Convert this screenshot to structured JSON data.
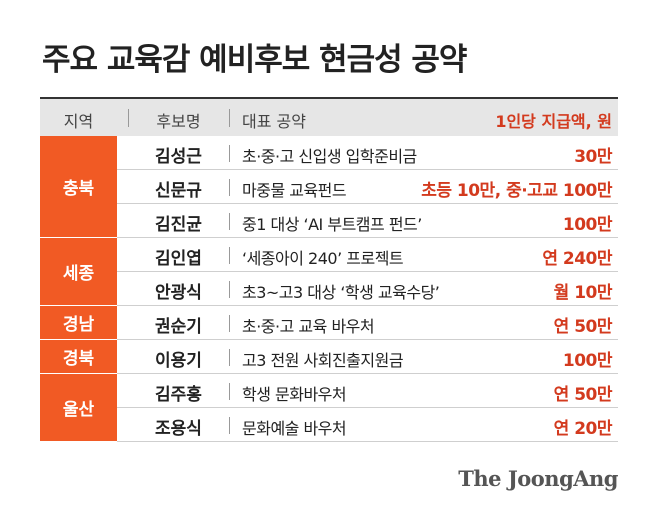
{
  "title": "주요 교육감 예비후보 현금성 공약",
  "header": {
    "region": "지역",
    "candidate": "후보명",
    "pledge": "대표 공약",
    "amount": "1인당 지급액, 원"
  },
  "regions": [
    {
      "name": "충북",
      "rows": 3
    },
    {
      "name": "세종",
      "rows": 2
    },
    {
      "name": "경남",
      "rows": 1
    },
    {
      "name": "경북",
      "rows": 1
    },
    {
      "name": "울산",
      "rows": 2
    }
  ],
  "rows": [
    {
      "candidate": "김성근",
      "pledge": "초·중·고 신입생 입학준비금",
      "amount": "30만"
    },
    {
      "candidate": "신문규",
      "pledge": "마중물 교육펀드",
      "amount": "초등 10만, 중·고교 100만"
    },
    {
      "candidate": "김진균",
      "pledge": "중1 대상 ‘AI 부트캠프 펀드’",
      "amount": "100만"
    },
    {
      "candidate": "김인엽",
      "pledge": "‘세종아이 240’ 프로젝트",
      "amount": "연 240만"
    },
    {
      "candidate": "안광식",
      "pledge": "초3~고3 대상 ‘학생 교육수당’",
      "amount": "월 10만"
    },
    {
      "candidate": "권순기",
      "pledge": "초·중·고 교육 바우처",
      "amount": "연 50만"
    },
    {
      "candidate": "이용기",
      "pledge": "고3 전원 사회진출지원금",
      "amount": "100만"
    },
    {
      "candidate": "김주홍",
      "pledge": "학생 문화바우처",
      "amount": "연 50만"
    },
    {
      "candidate": "조용식",
      "pledge": "문화예술 바우처",
      "amount": "연 20만"
    }
  ],
  "source": "The JoongAng",
  "colors": {
    "accent": "#f15a24",
    "amount": "#d33a1e",
    "header_bg": "#e6e6e6"
  }
}
